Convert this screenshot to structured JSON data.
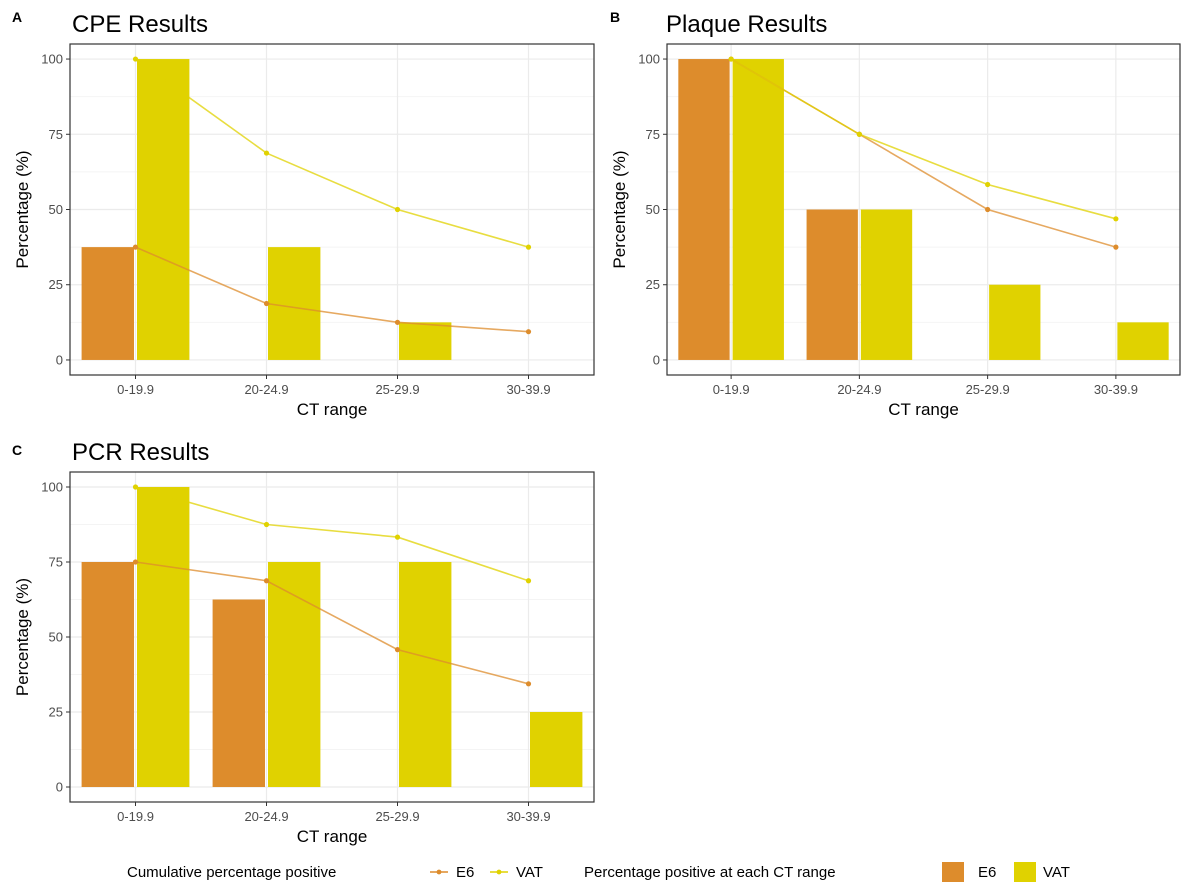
{
  "colors": {
    "E6": "#dd8c2c",
    "VAT": "#e0d200",
    "grid_major": "#ebebeb",
    "grid_minor": "#f4f4f4",
    "axis_text": "#4d4d4d"
  },
  "chart_data": [
    {
      "panel": "A",
      "title": "CPE Results",
      "type": "bar+line",
      "xlabel": "CT range",
      "ylabel": "Percentage (%)",
      "categories": [
        "0-19.9",
        "20-24.9",
        "25-29.9",
        "30-39.9"
      ],
      "ylim": [
        -5,
        105
      ],
      "yticks": [
        0,
        25,
        50,
        75,
        100
      ],
      "grid": true,
      "bars": [
        {
          "name": "E6",
          "values": [
            37.5,
            0,
            0,
            0
          ]
        },
        {
          "name": "VAT",
          "values": [
            100,
            37.5,
            12.5,
            0
          ]
        }
      ],
      "lines": [
        {
          "name": "E6",
          "values": [
            37.5,
            18.75,
            12.5,
            9.4
          ]
        },
        {
          "name": "VAT",
          "values": [
            100,
            68.75,
            50,
            37.5
          ]
        }
      ]
    },
    {
      "panel": "B",
      "title": "Plaque Results",
      "type": "bar+line",
      "xlabel": "CT range",
      "ylabel": "Percentage (%)",
      "categories": [
        "0-19.9",
        "20-24.9",
        "25-29.9",
        "30-39.9"
      ],
      "ylim": [
        -5,
        105
      ],
      "yticks": [
        0,
        25,
        50,
        75,
        100
      ],
      "grid": true,
      "bars": [
        {
          "name": "E6",
          "values": [
            100,
            50,
            0,
            0
          ]
        },
        {
          "name": "VAT",
          "values": [
            100,
            50,
            25,
            12.5
          ]
        }
      ],
      "lines": [
        {
          "name": "E6",
          "values": [
            100,
            75,
            50,
            37.5
          ]
        },
        {
          "name": "VAT",
          "values": [
            100,
            75,
            58.3,
            46.9
          ]
        }
      ]
    },
    {
      "panel": "C",
      "title": "PCR Results",
      "type": "bar+line",
      "xlabel": "CT range",
      "ylabel": "Percentage (%)",
      "categories": [
        "0-19.9",
        "20-24.9",
        "25-29.9",
        "30-39.9"
      ],
      "ylim": [
        -5,
        105
      ],
      "yticks": [
        0,
        25,
        50,
        75,
        100
      ],
      "grid": true,
      "bars": [
        {
          "name": "E6",
          "values": [
            75,
            62.5,
            0,
            0
          ]
        },
        {
          "name": "VAT",
          "values": [
            100,
            75,
            75,
            25
          ]
        }
      ],
      "lines": [
        {
          "name": "E6",
          "values": [
            75,
            68.75,
            45.8,
            34.4
          ]
        },
        {
          "name": "VAT",
          "values": [
            100,
            87.5,
            83.3,
            68.75
          ]
        }
      ]
    }
  ],
  "legend": {
    "placement": "bottom",
    "line_title": "Cumulative percentage positive",
    "bar_title": "Percentage positive at each CT range",
    "line_entries": [
      "E6",
      "VAT"
    ],
    "bar_entries": [
      "E6",
      "VAT"
    ]
  }
}
